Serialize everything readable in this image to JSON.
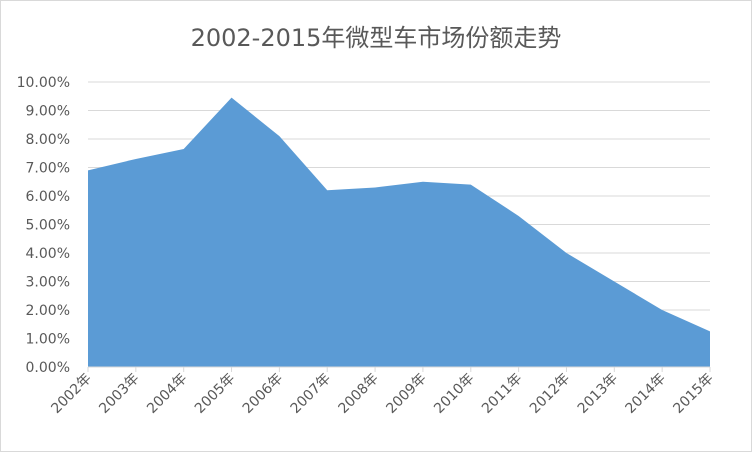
{
  "chart_data": {
    "type": "area",
    "title": "2002-2015年微型车市场份额走势",
    "xlabel": "",
    "ylabel": "",
    "categories": [
      "2002年",
      "2003年",
      "2004年",
      "2005年",
      "2006年",
      "2007年",
      "2008年",
      "2009年",
      "2010年",
      "2011年",
      "2012年",
      "2013年",
      "2014年",
      "2015年"
    ],
    "values": [
      6.9,
      7.3,
      7.65,
      9.45,
      8.1,
      6.2,
      6.3,
      6.5,
      6.4,
      5.3,
      4.0,
      3.0,
      2.0,
      1.25
    ],
    "ylim": [
      0,
      10
    ],
    "yticks": [
      "0.00%",
      "1.00%",
      "2.00%",
      "3.00%",
      "4.00%",
      "5.00%",
      "6.00%",
      "7.00%",
      "8.00%",
      "9.00%",
      "10.00%"
    ],
    "grid": true,
    "legend": "none",
    "color": "#5b9bd5"
  }
}
